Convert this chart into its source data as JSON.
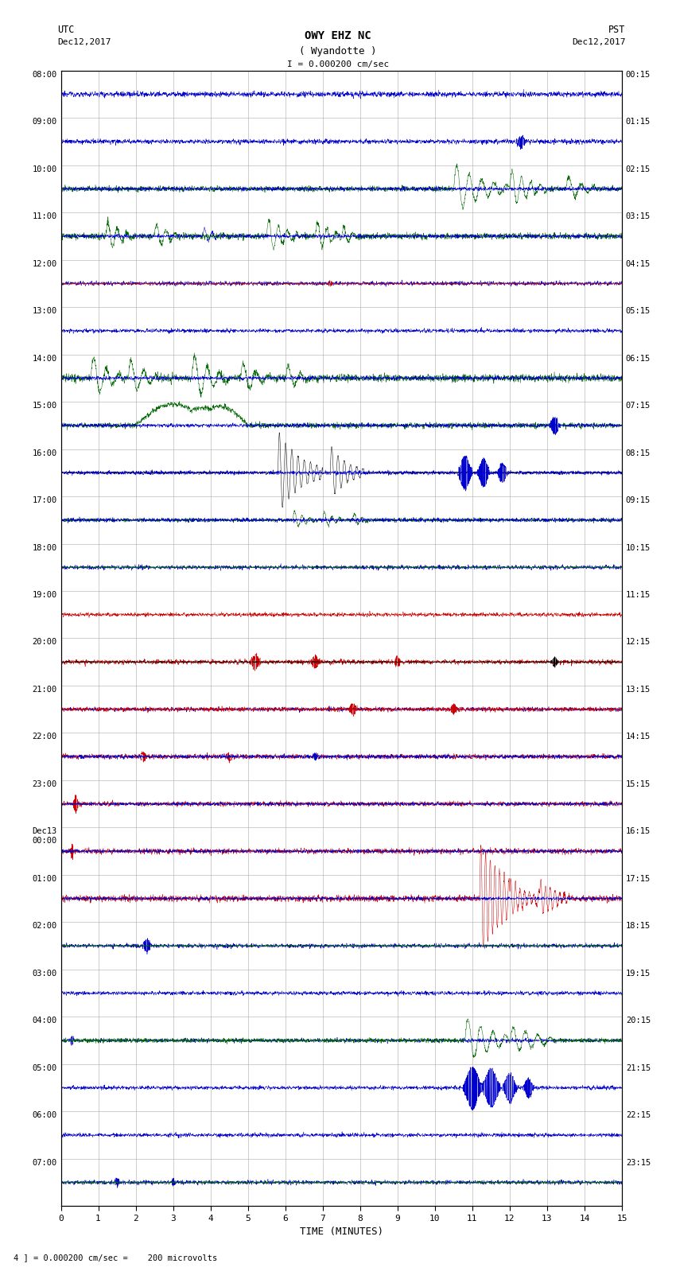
{
  "title_line1": "OWY EHZ NC",
  "title_line2": "( Wyandotte )",
  "title_scale": "I = 0.000200 cm/sec",
  "label_utc": "UTC",
  "label_pst": "PST",
  "date_left": "Dec12,2017",
  "date_right": "Dec12,2017",
  "xlabel": "TIME (MINUTES)",
  "footer": "4 ] = 0.000200 cm/sec =    200 microvolts",
  "utc_labels": [
    "08:00",
    "09:00",
    "10:00",
    "11:00",
    "12:00",
    "13:00",
    "14:00",
    "15:00",
    "16:00",
    "17:00",
    "18:00",
    "19:00",
    "20:00",
    "21:00",
    "22:00",
    "23:00",
    "Dec13\n00:00",
    "01:00",
    "02:00",
    "03:00",
    "04:00",
    "05:00",
    "06:00",
    "07:00"
  ],
  "pst_labels": [
    "00:15",
    "01:15",
    "02:15",
    "03:15",
    "04:15",
    "05:15",
    "06:15",
    "07:15",
    "08:15",
    "09:15",
    "10:15",
    "11:15",
    "12:15",
    "13:15",
    "14:15",
    "15:15",
    "16:15",
    "17:15",
    "18:15",
    "19:15",
    "20:15",
    "21:15",
    "22:15",
    "23:15"
  ],
  "n_rows": 24,
  "n_minutes": 15,
  "bg_color": "#ffffff",
  "grid_color": "#aaaaaa",
  "fig_width": 8.5,
  "fig_height": 16.13
}
